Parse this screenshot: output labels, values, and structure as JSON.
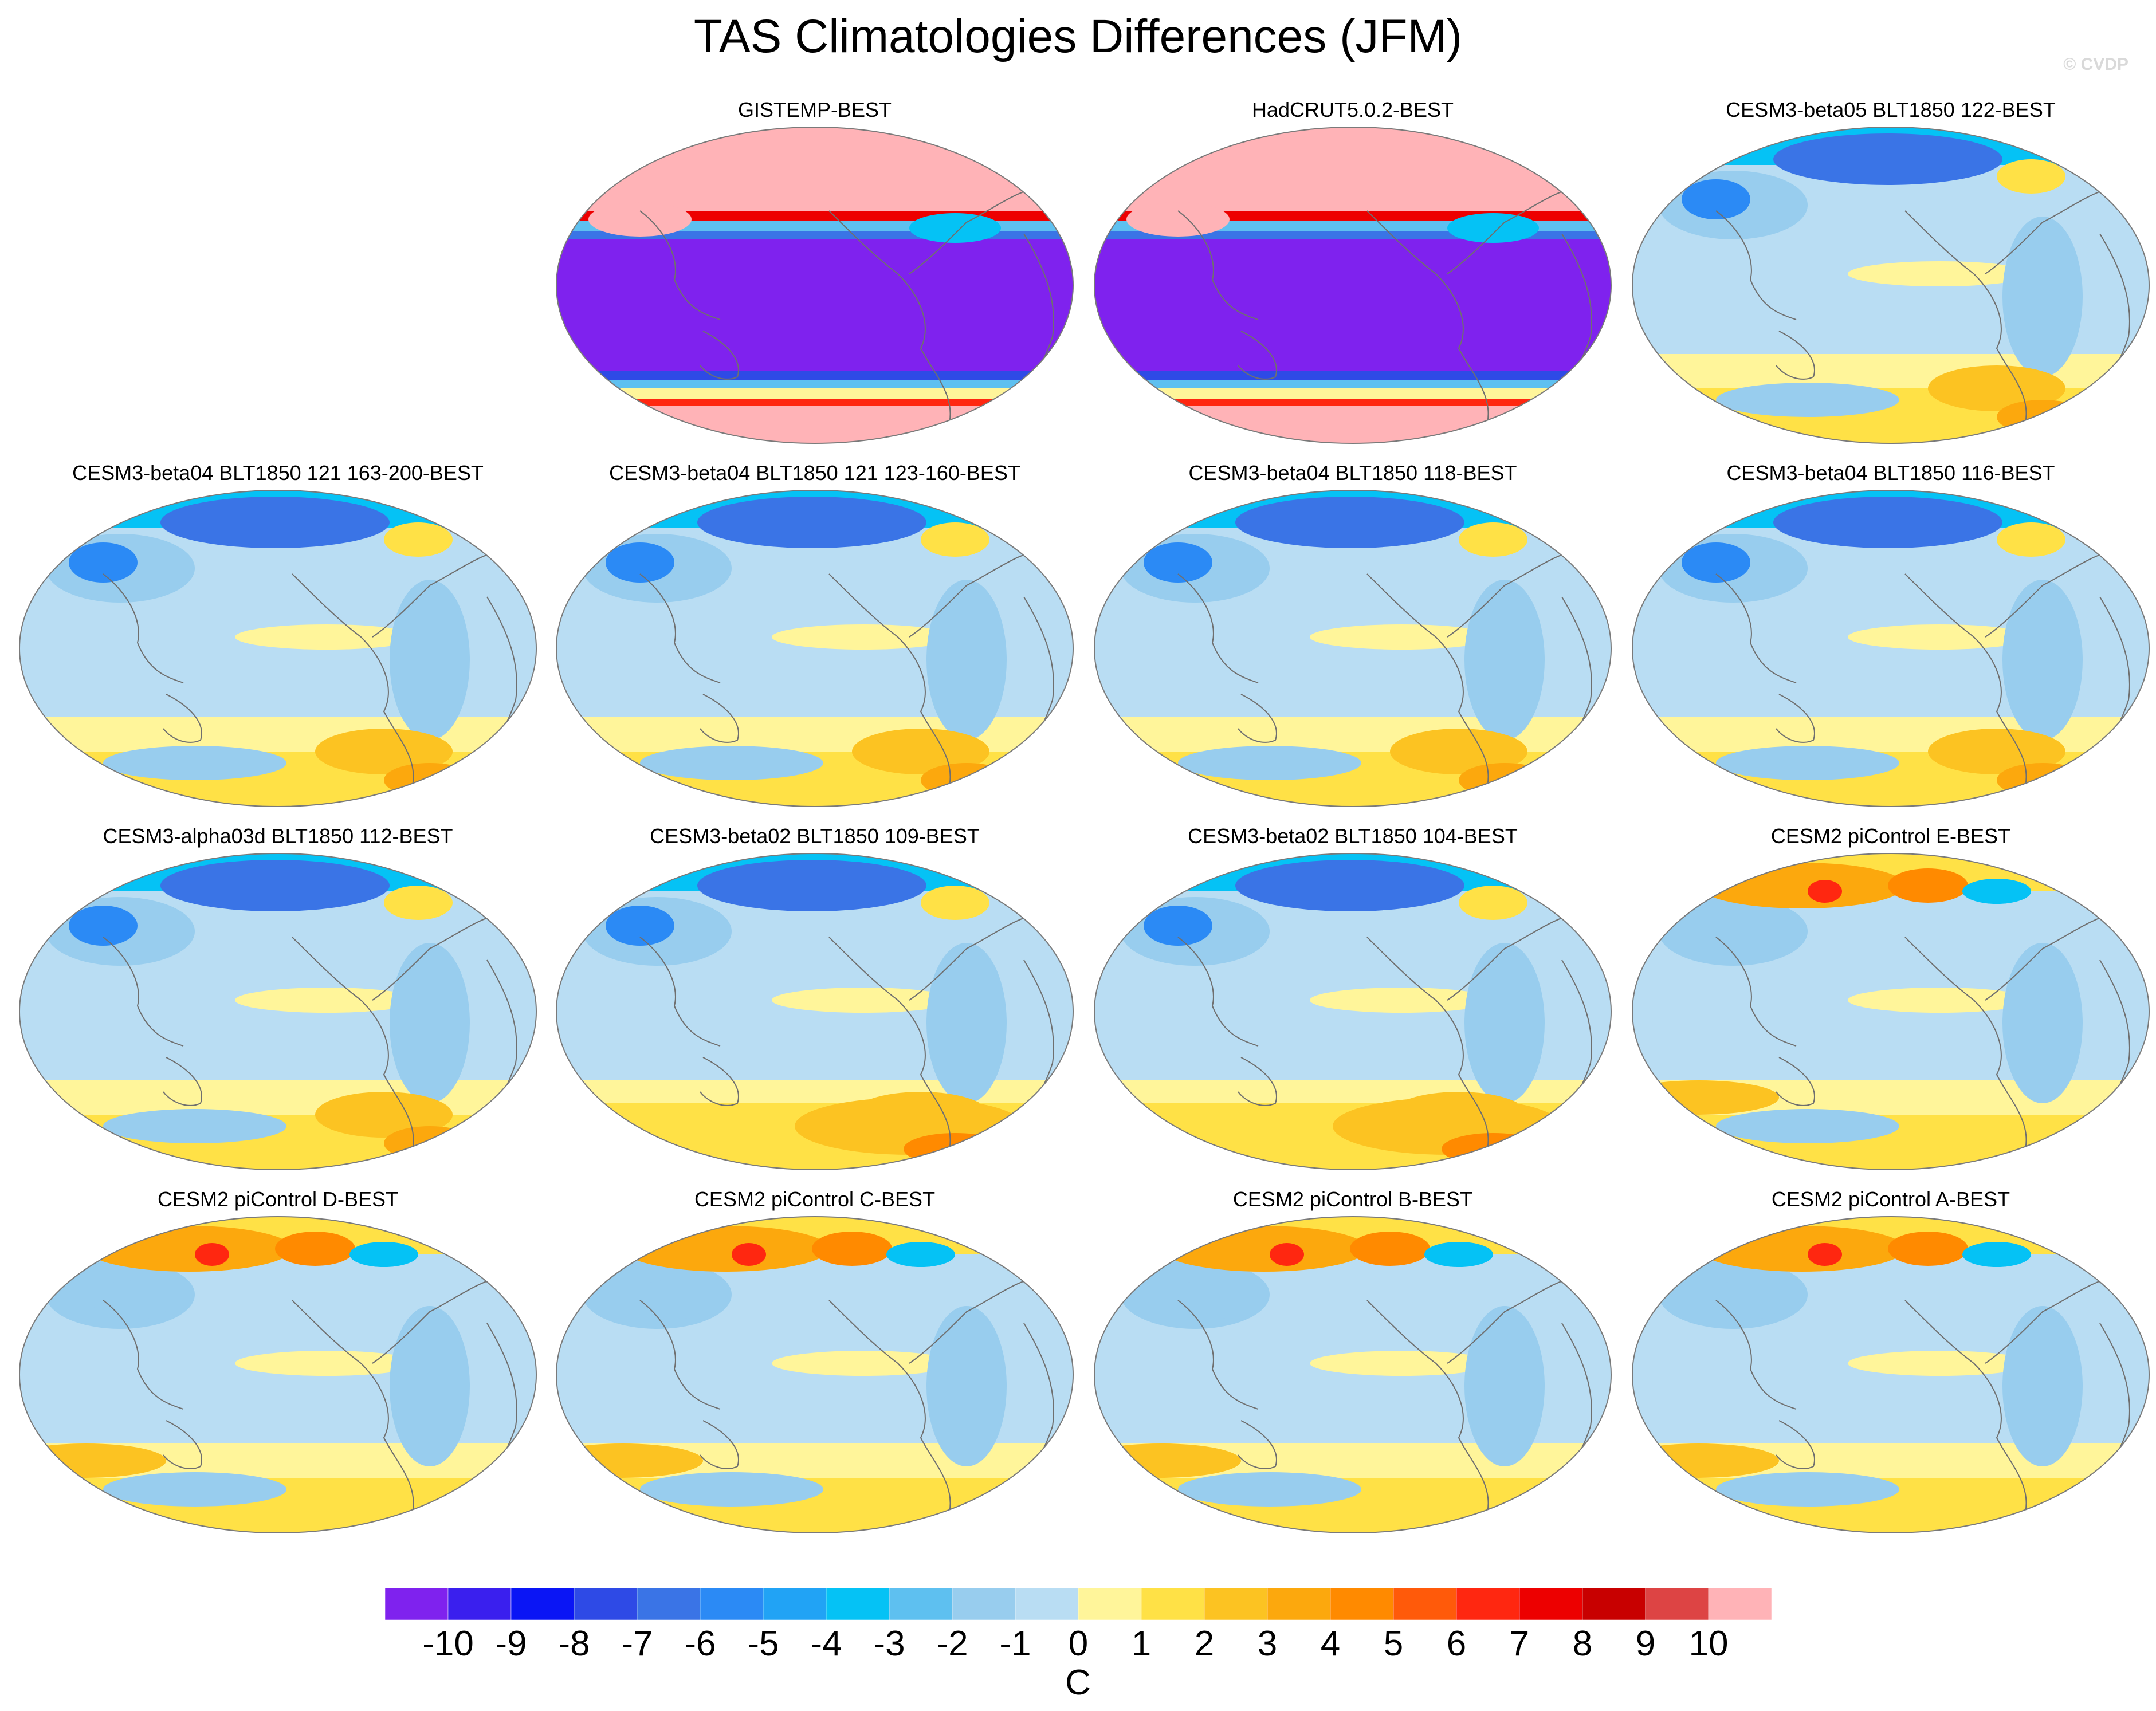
{
  "title": "TAS Climatologies Differences (JFM)",
  "watermark": "© CVDP",
  "panels": [
    "GISTEMP-BEST",
    "HadCRUT5.0.2-BEST",
    "CESM3-beta05 BLT1850 122-BEST",
    "CESM3-beta04 BLT1850 121 163-200-BEST",
    "CESM3-beta04 BLT1850 121 123-160-BEST",
    "CESM3-beta04 BLT1850 118-BEST",
    "CESM3-beta04 BLT1850 116-BEST",
    "CESM3-alpha03d BLT1850 112-BEST",
    "CESM3-beta02 BLT1850 109-BEST",
    "CESM3-beta02 BLT1850 104-BEST",
    "CESM2 piControl E-BEST",
    "CESM2 piControl D-BEST",
    "CESM2 piControl C-BEST",
    "CESM2 piControl B-BEST",
    "CESM2 piControl A-BEST"
  ],
  "chart_data": {
    "type": "heatmap",
    "title": "TAS Climatologies Differences (JFM)",
    "projection": "Robinson (Pacific-centered)",
    "units": "C",
    "colorbar": {
      "ticks": [
        "-10",
        "-9",
        "-8",
        "-7",
        "-6",
        "-5",
        "-4",
        "-3",
        "-2",
        "-1",
        "0",
        "1",
        "2",
        "3",
        "4",
        "5",
        "6",
        "7",
        "8",
        "9",
        "10"
      ],
      "colors": [
        "#7f22ee",
        "#3a1fee",
        "#0a15f5",
        "#2e4ae6",
        "#3a74e6",
        "#2b8af5",
        "#21a3f5",
        "#05c2f5",
        "#5ec0f0",
        "#98cdee",
        "#b9ddf3",
        "#fff59a",
        "#ffe146",
        "#fcc322",
        "#fca80d",
        "#ff8a00",
        "#ff5a0a",
        "#ff2710",
        "#ed0000",
        "#c80000",
        "#dd4444",
        "#ffb3b7"
      ]
    },
    "panels": [
      {
        "name": "GISTEMP-BEST",
        "pattern": "masked"
      },
      {
        "name": "HadCRUT5.0.2-BEST",
        "pattern": "masked"
      },
      {
        "name": "CESM3-beta05 BLT1850 122-BEST",
        "pattern": "cold"
      },
      {
        "name": "CESM3-beta04 BLT1850 121 163-200-BEST",
        "pattern": "cold"
      },
      {
        "name": "CESM3-beta04 BLT1850 121 123-160-BEST",
        "pattern": "cold"
      },
      {
        "name": "CESM3-beta04 BLT1850 118-BEST",
        "pattern": "cold"
      },
      {
        "name": "CESM3-beta04 BLT1850 116-BEST",
        "pattern": "cold"
      },
      {
        "name": "CESM3-alpha03d BLT1850 112-BEST",
        "pattern": "cold"
      },
      {
        "name": "CESM3-beta02 BLT1850 109-BEST",
        "pattern": "cold-warm-south"
      },
      {
        "name": "CESM3-beta02 BLT1850 104-BEST",
        "pattern": "cold-warm-south"
      },
      {
        "name": "CESM2 piControl E-BEST",
        "pattern": "warm-north"
      },
      {
        "name": "CESM2 piControl D-BEST",
        "pattern": "warm-north"
      },
      {
        "name": "CESM2 piControl C-BEST",
        "pattern": "warm-north"
      },
      {
        "name": "CESM2 piControl B-BEST",
        "pattern": "warm-north"
      },
      {
        "name": "CESM2 piControl A-BEST",
        "pattern": "warm-north"
      }
    ]
  }
}
